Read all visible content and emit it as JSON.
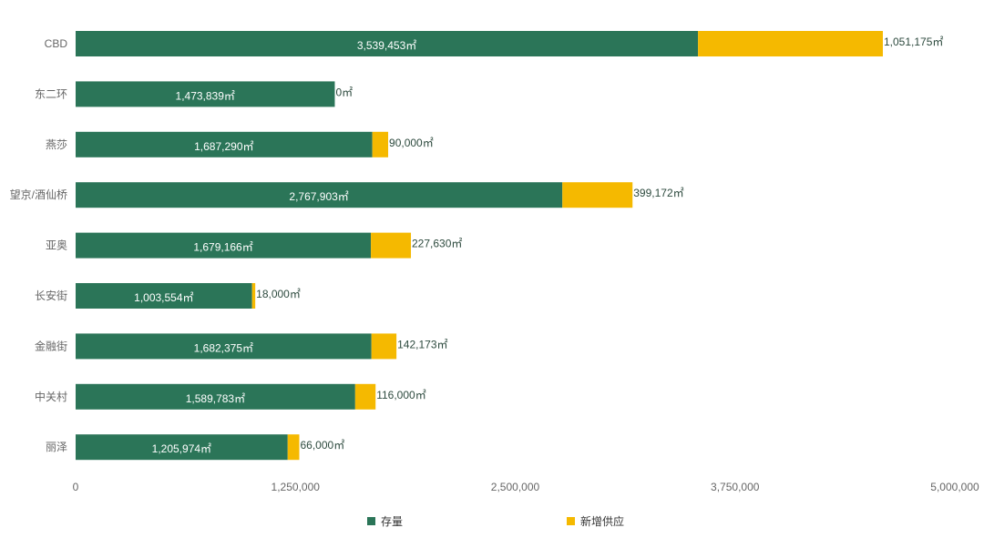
{
  "chart_data": {
    "type": "bar",
    "orientation": "horizontal",
    "stacked": true,
    "categories": [
      "CBD",
      "东二环",
      "燕莎",
      "望京/酒仙桥",
      "亚奥",
      "长安街",
      "金融街",
      "中关村",
      "丽泽"
    ],
    "series": [
      {
        "name": "存量",
        "color": "#2b7558",
        "values": [
          3539453,
          1473839,
          1687290,
          2767903,
          1679166,
          1003554,
          1682375,
          1589783,
          1205974
        ],
        "labels": [
          "3,539,453㎡",
          "1,473,839㎡",
          "1,687,290㎡",
          "2,767,903㎡",
          "1,679,166㎡",
          "1,003,554㎡",
          "1,682,375㎡",
          "1,589,783㎡",
          "1,205,974㎡"
        ]
      },
      {
        "name": "新增供应",
        "color": "#f5b900",
        "values": [
          1051175,
          0,
          90000,
          399172,
          227630,
          18000,
          142173,
          116000,
          66000
        ],
        "labels": [
          "1,051,175㎡",
          "0㎡",
          "90,000㎡",
          "399,172㎡",
          "227,630㎡",
          "18,000㎡",
          "142,173㎡",
          "116,000㎡",
          "66,000㎡"
        ]
      }
    ],
    "xlim": [
      0,
      5000000
    ],
    "xticks": [
      "0",
      "1,250,000",
      "2,500,000",
      "3,750,000",
      "5,000,000"
    ],
    "xtick_values": [
      0,
      1250000,
      2500000,
      3750000,
      5000000
    ],
    "grid": false,
    "legend_position": "bottom"
  }
}
